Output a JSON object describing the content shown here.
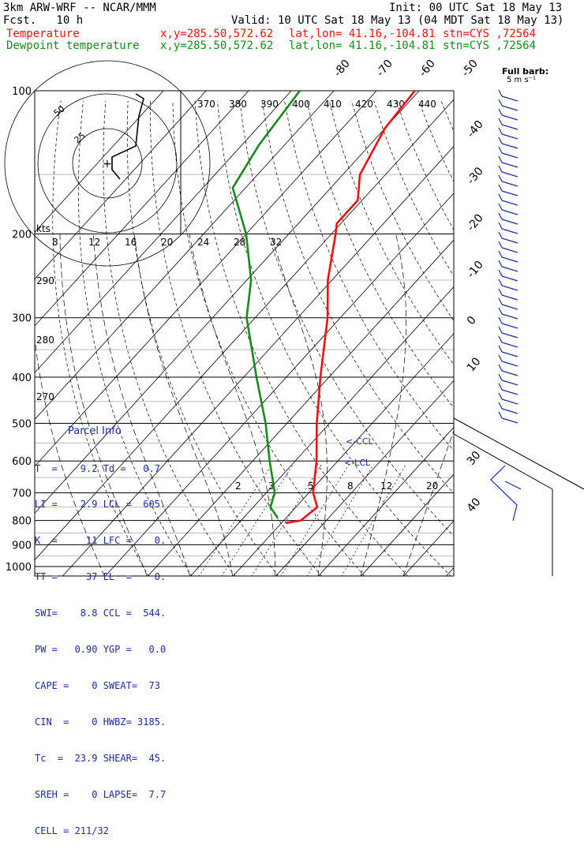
{
  "header": {
    "model": "3km ARW-WRF -- NCAR/MMM",
    "init": "Init: 00 UTC Sat 18 May 13",
    "fcst": "Fcst.   10 h",
    "valid": "Valid: 10 UTC Sat 18 May 13 (04 MDT Sat 18 May 13)",
    "temp_line": {
      "label": "Temperature",
      "xy": "x,y=285.50,572.62",
      "latlon": "lat,lon= 41.16,-104.81",
      "stn": "stn=CYS ,72564"
    },
    "dew_line": {
      "label": "Dewpoint temperature",
      "xy": "x,y=285.50,572.62",
      "latlon": "lat,lon= 41.16,-104.81",
      "stn": "stn=CYS ,72564"
    }
  },
  "chart_data": {
    "type": "line",
    "pressure_ticks": [
      "100",
      "200",
      "300",
      "400",
      "500",
      "600",
      "700",
      "800",
      "900",
      "1000"
    ],
    "temp_ticks": [
      {
        "label": "-80",
        "t": -80
      },
      {
        "label": "-70",
        "t": -70
      },
      {
        "label": "-60",
        "t": -60
      },
      {
        "label": "-50",
        "t": -50
      },
      {
        "label": "-40",
        "t": -40
      },
      {
        "label": "-30",
        "t": -30
      },
      {
        "label": "-20",
        "t": -20
      },
      {
        "label": "-10",
        "t": -10
      },
      {
        "label": "0",
        "t": 0
      },
      {
        "label": "10",
        "t": 10
      },
      {
        "label": "30",
        "t": 30
      },
      {
        "label": "40",
        "t": 40
      }
    ],
    "theta_labels": [
      "370",
      "380",
      "390",
      "400",
      "410",
      "420",
      "430",
      "440"
    ],
    "theta_e_labels": [
      "290",
      "280",
      "270"
    ],
    "mixing_ratio_labels": [
      "2",
      "3",
      "5",
      "8",
      "12",
      "20"
    ],
    "hodo_labels": {
      "units": "kts",
      "speeds": [
        "8",
        "12",
        "16",
        "20",
        "24",
        "28",
        "32"
      ],
      "rings": [
        "50",
        "25"
      ]
    },
    "full_barb": "Full barb:",
    "barb_units": "5 m s⁻¹",
    "lcl_labels": [
      "<-CCL",
      "<-LCL"
    ],
    "series": [
      {
        "name": "Temperature",
        "color": "#ee1111",
        "points": [
          [
            100,
            -61
          ],
          [
            120,
            -60
          ],
          [
            150,
            -56
          ],
          [
            170,
            -51
          ],
          [
            190,
            -51
          ],
          [
            200,
            -49
          ],
          [
            250,
            -41
          ],
          [
            300,
            -33
          ],
          [
            400,
            -22
          ],
          [
            500,
            -13
          ],
          [
            600,
            -5
          ],
          [
            700,
            1
          ],
          [
            750,
            5
          ],
          [
            800,
            4
          ],
          [
            810,
            1
          ]
        ]
      },
      {
        "name": "Dewpoint temperature",
        "color": "#1a8a1a",
        "points": [
          [
            100,
            -88
          ],
          [
            130,
            -86
          ],
          [
            160,
            -83
          ],
          [
            200,
            -70
          ],
          [
            250,
            -59
          ],
          [
            300,
            -52
          ],
          [
            400,
            -37
          ],
          [
            500,
            -25
          ],
          [
            600,
            -16
          ],
          [
            700,
            -8
          ],
          [
            750,
            -6
          ],
          [
            790,
            -2
          ]
        ]
      }
    ]
  },
  "parcel_info": {
    "title": "Parcel Info",
    "rows": [
      "T  =    9.2 Td =   0.7",
      "LI =    2.9 LCL =  605.",
      "K  =     11 LFC =    0.",
      "TT =     37 EL  =    0.",
      "SWI=    8.8 CCL =  544.",
      "PW =   0.90 YGP =   0.0",
      "CAPE =    0 SWEAT=  73",
      "CIN  =    0 HWBZ= 3185.",
      "Tc  =  23.9 SHEAR=  45.",
      "SREH =    0 LAPSE=  7.7",
      "CELL = 211/32"
    ]
  }
}
